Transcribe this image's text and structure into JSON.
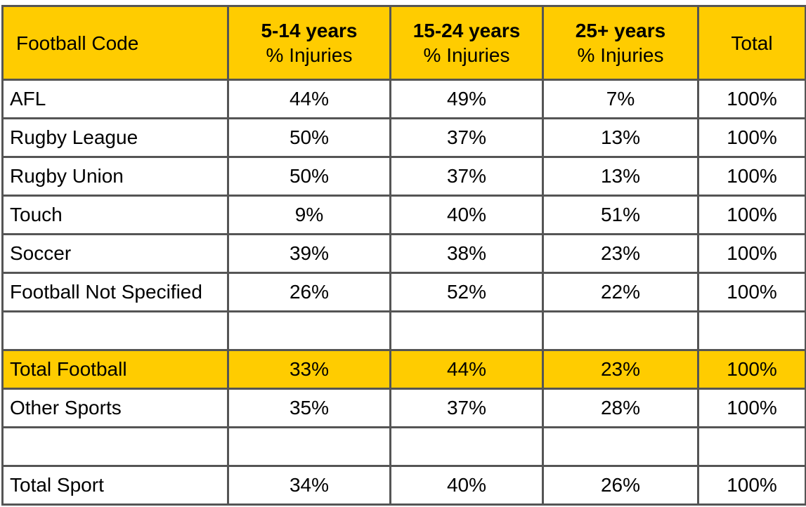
{
  "header": {
    "col0": "Football Code",
    "col1_line1": "5-14 years",
    "col1_line2": "% Injuries",
    "col2_line1": "15-24 years",
    "col2_line2": "% Injuries",
    "col3_line1": "25+ years",
    "col3_line2": "% Injuries",
    "col4": "Total"
  },
  "rows": [
    {
      "code": "AFL",
      "c1": "44%",
      "c2": "49%",
      "c3": "7%",
      "total": "100%"
    },
    {
      "code": "Rugby League",
      "c1": "50%",
      "c2": "37%",
      "c3": "13%",
      "total": "100%"
    },
    {
      "code": "Rugby Union",
      "c1": "50%",
      "c2": "37%",
      "c3": "13%",
      "total": "100%"
    },
    {
      "code": "Touch",
      "c1": "9%",
      "c2": "40%",
      "c3": "51%",
      "total": "100%"
    },
    {
      "code": "Soccer",
      "c1": "39%",
      "c2": "38%",
      "c3": "23%",
      "total": "100%"
    },
    {
      "code": "Football Not Specified",
      "c1": "26%",
      "c2": "52%",
      "c3": "22%",
      "total": "100%"
    },
    {
      "code": "",
      "c1": "",
      "c2": "",
      "c3": "",
      "total": ""
    },
    {
      "code": "Total Football",
      "c1": "33%",
      "c2": "44%",
      "c3": "23%",
      "total": "100%"
    },
    {
      "code": "Other Sports",
      "c1": "35%",
      "c2": "37%",
      "c3": "28%",
      "total": "100%"
    },
    {
      "code": "",
      "c1": "",
      "c2": "",
      "c3": "",
      "total": ""
    },
    {
      "code": "Total Sport",
      "c1": "34%",
      "c2": "40%",
      "c3": "26%",
      "total": "100%"
    }
  ],
  "colors": {
    "header_bg": "#ffcc00",
    "highlight_row_bg": "#ffcc00",
    "border": "#555555"
  }
}
